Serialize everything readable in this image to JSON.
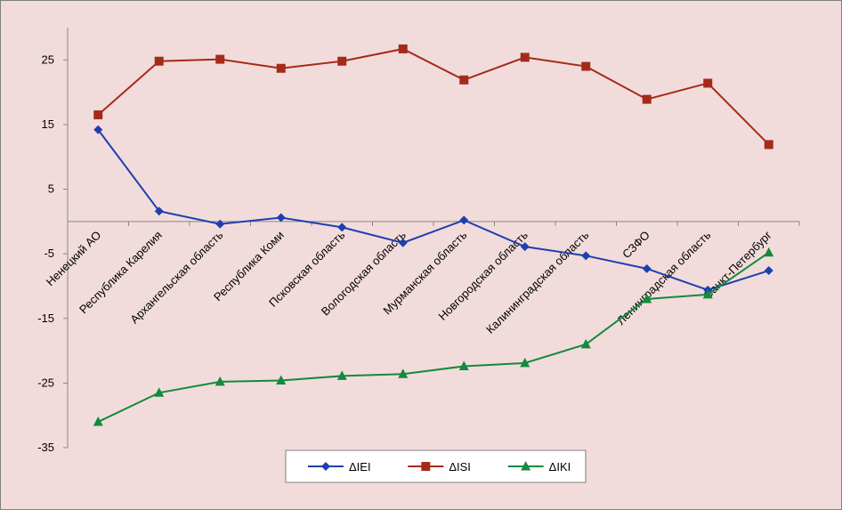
{
  "chart_data": {
    "type": "line",
    "title": "",
    "xlabel": "",
    "ylabel": "",
    "ylim": [
      -35,
      30
    ],
    "yticks": [
      -35,
      -25,
      -15,
      -5,
      5,
      15,
      25
    ],
    "grid": false,
    "legend_position": "bottom",
    "categories": [
      "Ненецкий АО",
      "Республика Карелия",
      "Архангельская область",
      "Республика Коми",
      "Псковская область",
      "Вологодская область",
      "Мурманская область",
      "Новгородская область",
      "Калининградская область",
      "СЗФО",
      "Ленинградская область",
      "Санкт-Петербург"
    ],
    "series": [
      {
        "name": "ΔIEI",
        "color": "#1f3fae",
        "marker": "diamond",
        "values": [
          14.2,
          1.6,
          -0.4,
          0.6,
          -0.9,
          -3.3,
          0.2,
          -3.9,
          -5.3,
          -7.3,
          -10.6,
          -7.6
        ]
      },
      {
        "name": "ΔISI",
        "color": "#a52a1a",
        "marker": "square",
        "values": [
          16.5,
          24.8,
          25.1,
          23.7,
          24.8,
          26.7,
          21.9,
          25.4,
          24.0,
          18.9,
          21.4,
          11.9
        ]
      },
      {
        "name": "ΔIKI",
        "color": "#138a3e",
        "marker": "triangle",
        "values": [
          -31.0,
          -26.5,
          -24.8,
          -24.6,
          -23.9,
          -23.6,
          -22.4,
          -21.9,
          -19.0,
          -12.0,
          -11.3,
          -4.8
        ]
      }
    ]
  }
}
